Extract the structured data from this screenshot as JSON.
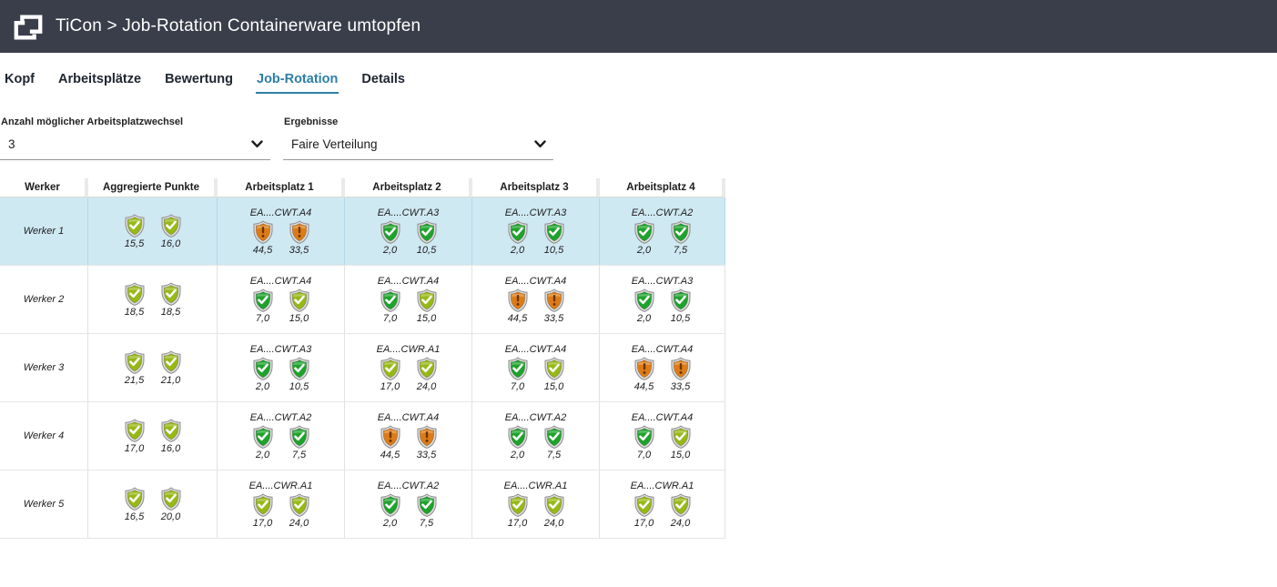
{
  "header": {
    "title": "TiCon > Job-Rotation Containerware umtopfen"
  },
  "tabs": [
    {
      "label": "Kopf",
      "active": false
    },
    {
      "label": "Arbeitsplätze",
      "active": false
    },
    {
      "label": "Bewertung",
      "active": false
    },
    {
      "label": "Job-Rotation",
      "active": true
    },
    {
      "label": "Details",
      "active": false
    }
  ],
  "filters": {
    "changes": {
      "label": "Anzahl möglicher Arbeitsplatzwechsel",
      "value": "3"
    },
    "results": {
      "label": "Ergebnisse",
      "value": "Faire Verteilung"
    }
  },
  "icons": {
    "logo": "ticon-logo",
    "select_chevron": "chevron-down",
    "shield_ok": "shield-check",
    "shield_warning": "shield-exclamation"
  },
  "table": {
    "columns": [
      "Werker",
      "Aggregierte Punkte",
      "Arbeitsplatz 1",
      "Arbeitsplatz 2",
      "Arbeitsplatz 3",
      "Arbeitsplatz 4"
    ],
    "rows": [
      {
        "name": "Werker 1",
        "selected": true,
        "aggregated": [
          {
            "value": "15,5",
            "status": "medium"
          },
          {
            "value": "16,0",
            "status": "medium"
          }
        ],
        "workplaces": [
          {
            "label": "EA....CWT.A4",
            "shields": [
              {
                "value": "44,5",
                "status": "high"
              },
              {
                "value": "33,5",
                "status": "high"
              }
            ]
          },
          {
            "label": "EA....CWT.A3",
            "shields": [
              {
                "value": "2,0",
                "status": "low"
              },
              {
                "value": "10,5",
                "status": "low"
              }
            ]
          },
          {
            "label": "EA....CWT.A3",
            "shields": [
              {
                "value": "2,0",
                "status": "low"
              },
              {
                "value": "10,5",
                "status": "low"
              }
            ]
          },
          {
            "label": "EA....CWT.A2",
            "shields": [
              {
                "value": "2,0",
                "status": "low"
              },
              {
                "value": "7,5",
                "status": "low"
              }
            ]
          }
        ]
      },
      {
        "name": "Werker 2",
        "selected": false,
        "aggregated": [
          {
            "value": "18,5",
            "status": "medium"
          },
          {
            "value": "18,5",
            "status": "medium"
          }
        ],
        "workplaces": [
          {
            "label": "EA....CWT.A4",
            "shields": [
              {
                "value": "7,0",
                "status": "low"
              },
              {
                "value": "15,0",
                "status": "medium"
              }
            ]
          },
          {
            "label": "EA....CWT.A4",
            "shields": [
              {
                "value": "7,0",
                "status": "low"
              },
              {
                "value": "15,0",
                "status": "medium"
              }
            ]
          },
          {
            "label": "EA....CWT.A4",
            "shields": [
              {
                "value": "44,5",
                "status": "high"
              },
              {
                "value": "33,5",
                "status": "high"
              }
            ]
          },
          {
            "label": "EA....CWT.A3",
            "shields": [
              {
                "value": "2,0",
                "status": "low"
              },
              {
                "value": "10,5",
                "status": "low"
              }
            ]
          }
        ]
      },
      {
        "name": "Werker 3",
        "selected": false,
        "aggregated": [
          {
            "value": "21,5",
            "status": "medium"
          },
          {
            "value": "21,0",
            "status": "medium"
          }
        ],
        "workplaces": [
          {
            "label": "EA....CWT.A3",
            "shields": [
              {
                "value": "2,0",
                "status": "low"
              },
              {
                "value": "10,5",
                "status": "low"
              }
            ]
          },
          {
            "label": "EA....CWR.A1",
            "shields": [
              {
                "value": "17,0",
                "status": "medium"
              },
              {
                "value": "24,0",
                "status": "medium"
              }
            ]
          },
          {
            "label": "EA....CWT.A4",
            "shields": [
              {
                "value": "7,0",
                "status": "low"
              },
              {
                "value": "15,0",
                "status": "medium"
              }
            ]
          },
          {
            "label": "EA....CWT.A4",
            "shields": [
              {
                "value": "44,5",
                "status": "high"
              },
              {
                "value": "33,5",
                "status": "high"
              }
            ]
          }
        ]
      },
      {
        "name": "Werker 4",
        "selected": false,
        "aggregated": [
          {
            "value": "17,0",
            "status": "medium"
          },
          {
            "value": "16,0",
            "status": "medium"
          }
        ],
        "workplaces": [
          {
            "label": "EA....CWT.A2",
            "shields": [
              {
                "value": "2,0",
                "status": "low"
              },
              {
                "value": "7,5",
                "status": "low"
              }
            ]
          },
          {
            "label": "EA....CWT.A4",
            "shields": [
              {
                "value": "44,5",
                "status": "high"
              },
              {
                "value": "33,5",
                "status": "high"
              }
            ]
          },
          {
            "label": "EA....CWT.A2",
            "shields": [
              {
                "value": "2,0",
                "status": "low"
              },
              {
                "value": "7,5",
                "status": "low"
              }
            ]
          },
          {
            "label": "EA....CWT.A4",
            "shields": [
              {
                "value": "7,0",
                "status": "low"
              },
              {
                "value": "15,0",
                "status": "medium"
              }
            ]
          }
        ]
      },
      {
        "name": "Werker 5",
        "selected": false,
        "aggregated": [
          {
            "value": "16,5",
            "status": "medium"
          },
          {
            "value": "20,0",
            "status": "medium"
          }
        ],
        "workplaces": [
          {
            "label": "EA....CWR.A1",
            "shields": [
              {
                "value": "17,0",
                "status": "medium"
              },
              {
                "value": "24,0",
                "status": "medium"
              }
            ]
          },
          {
            "label": "EA....CWT.A2",
            "shields": [
              {
                "value": "2,0",
                "status": "low"
              },
              {
                "value": "7,5",
                "status": "low"
              }
            ]
          },
          {
            "label": "EA....CWR.A1",
            "shields": [
              {
                "value": "17,0",
                "status": "medium"
              },
              {
                "value": "24,0",
                "status": "medium"
              }
            ]
          },
          {
            "label": "EA....CWR.A1",
            "shields": [
              {
                "value": "17,0",
                "status": "medium"
              },
              {
                "value": "24,0",
                "status": "medium"
              }
            ]
          }
        ]
      }
    ]
  },
  "colors": {
    "titlebar_bg": "#3a3e4a",
    "accent_blue": "#2d7fa5",
    "row_highlight": "#cfe9f3",
    "status_low": "#1ea32b",
    "status_medium": "#97b915",
    "status_high": "#dd7c17"
  }
}
